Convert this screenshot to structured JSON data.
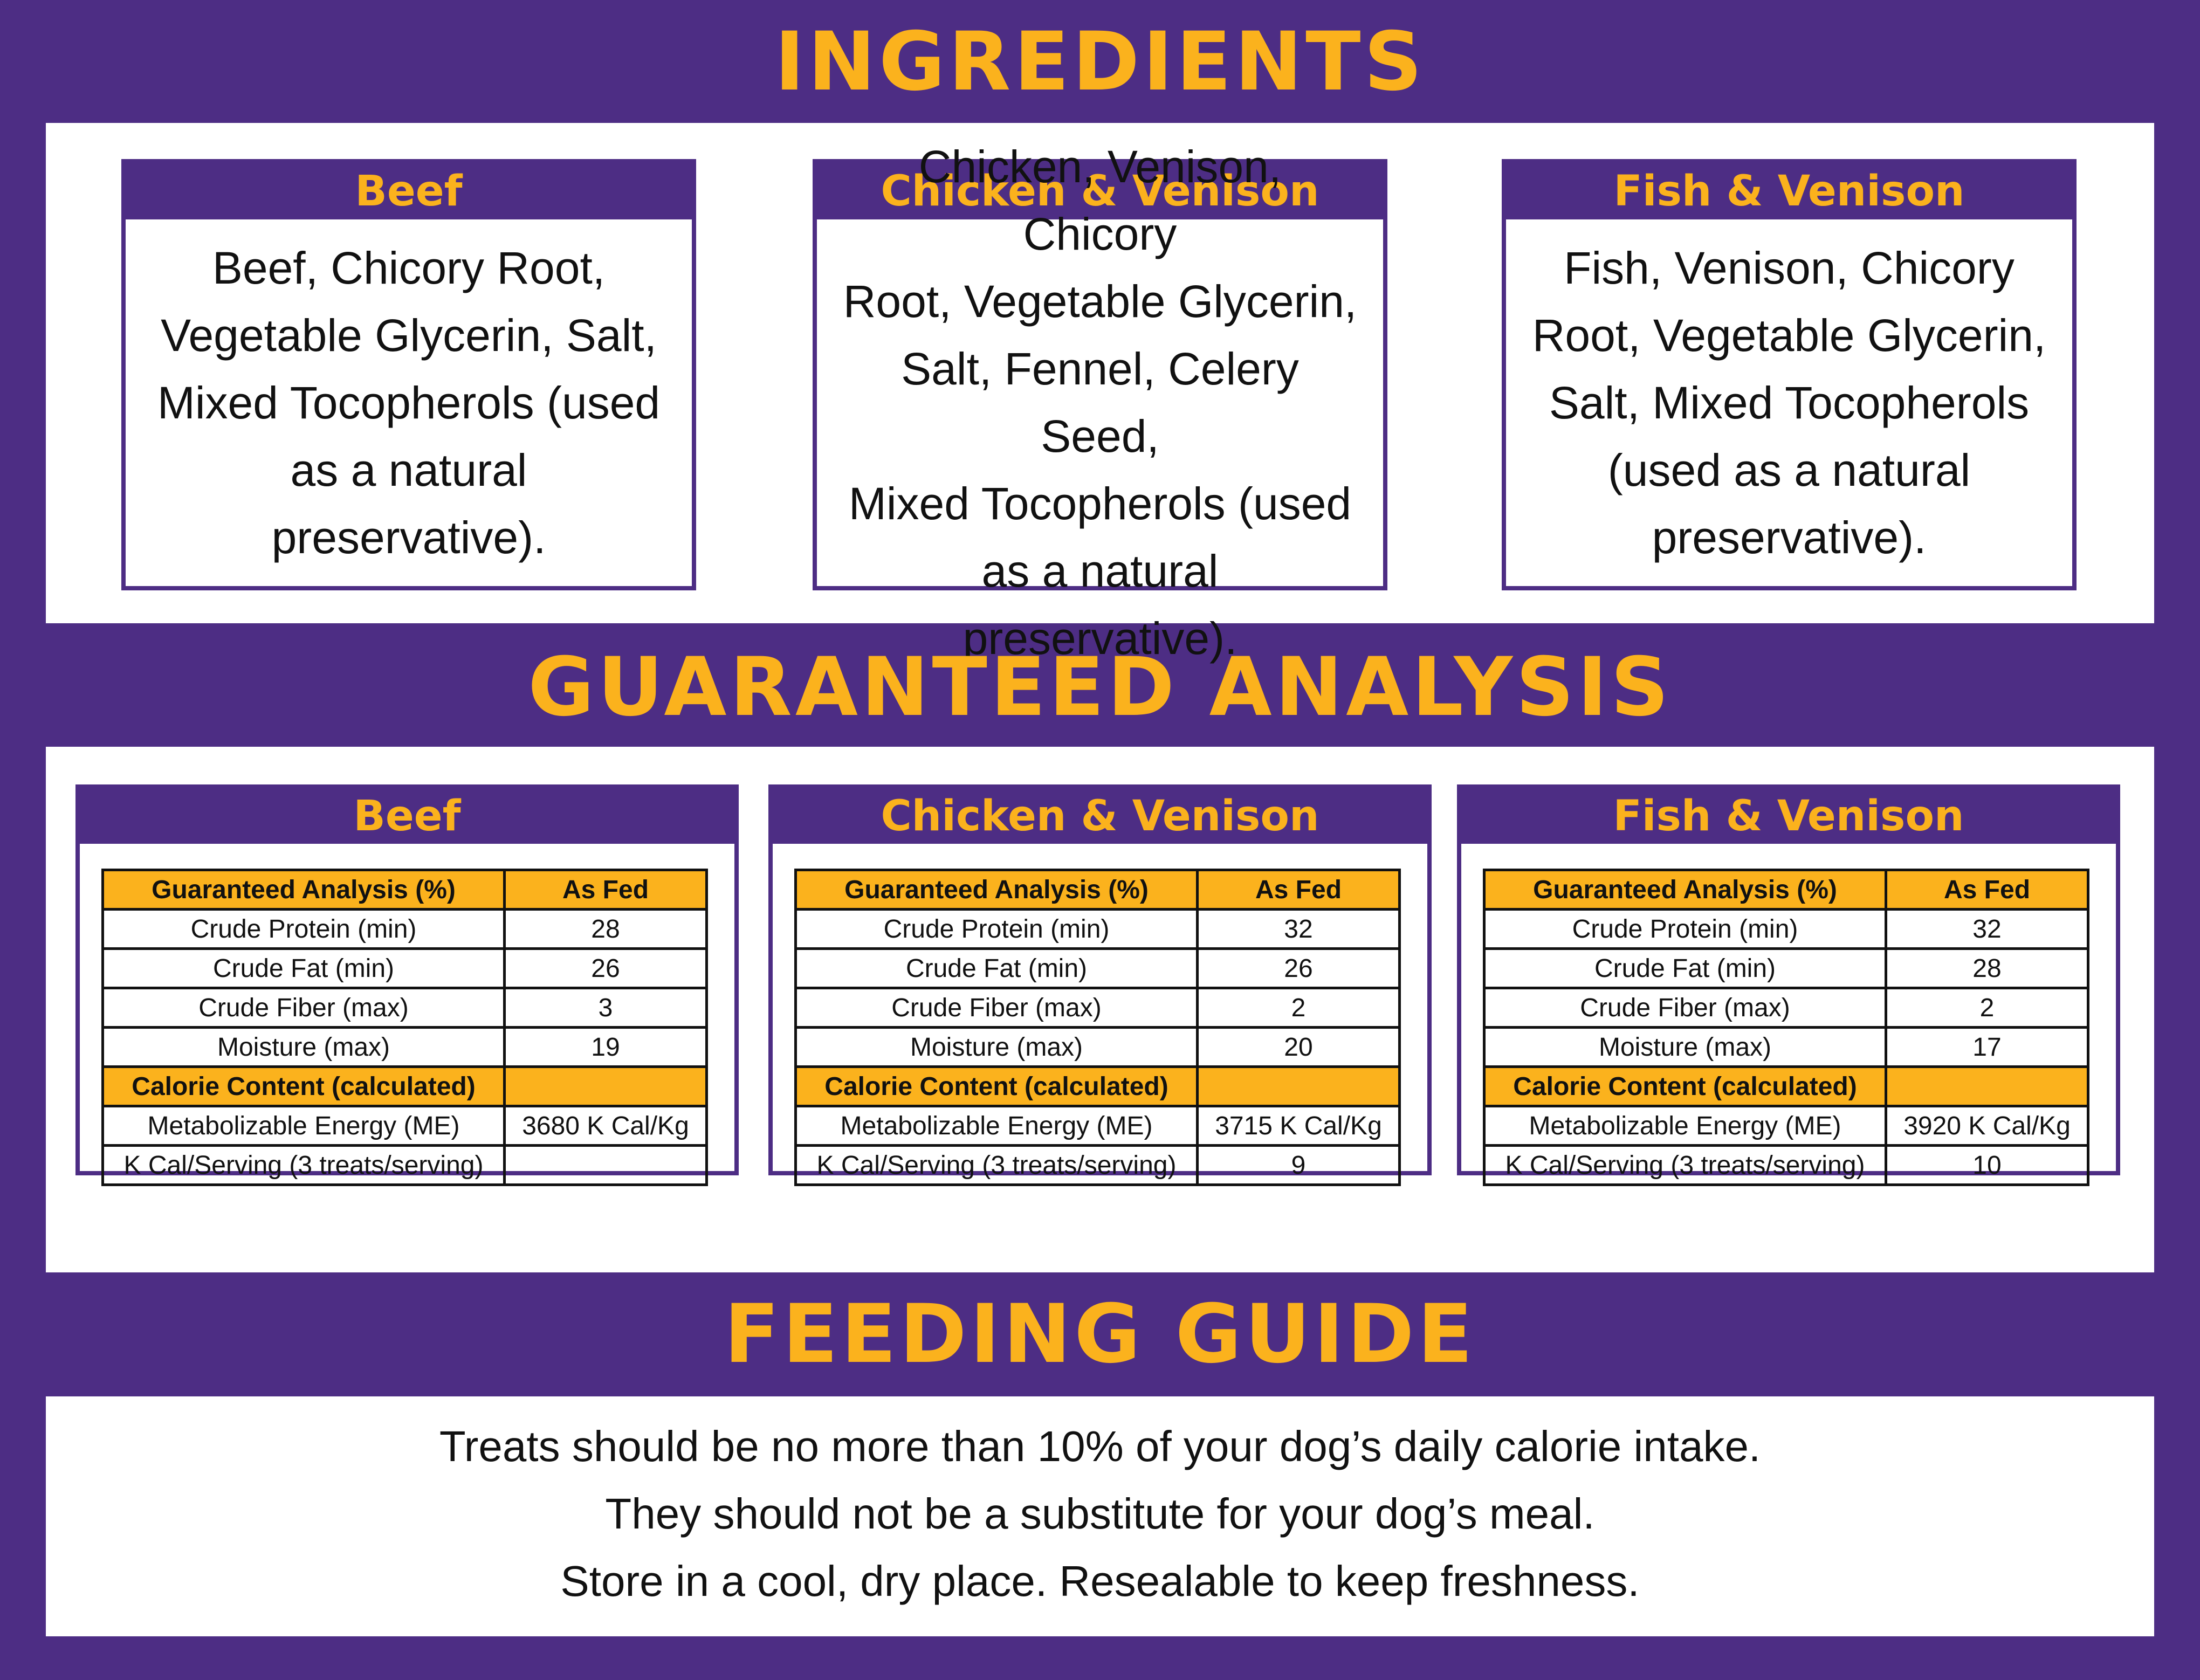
{
  "sections": {
    "ingredients_title": "INGREDIENTS",
    "analysis_title": "GUARANTEED ANALYSIS",
    "feeding_title": "FEEDING GUIDE"
  },
  "ingredients": [
    {
      "name": "Beef",
      "lines": [
        "Beef, Chicory Root,",
        "Vegetable Glycerin, Salt,",
        "Mixed Tocopherols (used",
        "as a natural preservative)."
      ]
    },
    {
      "name": "Chicken & Venison",
      "lines": [
        "Chicken, Venison, Chicory",
        "Root, Vegetable Glycerin,",
        "Salt, Fennel, Celery Seed,",
        "Mixed Tocopherols (used",
        "as a natural preservative)."
      ]
    },
    {
      "name": "Fish & Venison",
      "lines": [
        "Fish, Venison, Chicory",
        "Root, Vegetable Glycerin,",
        "Salt, Mixed Tocopherols",
        "(used as a natural",
        "preservative)."
      ]
    }
  ],
  "analysis": [
    {
      "name": "Beef",
      "rows": [
        [
          "Guaranteed Analysis (%)",
          "As Fed"
        ],
        [
          "Crude Protein (min)",
          "28"
        ],
        [
          "Crude Fat (min)",
          "26"
        ],
        [
          "Crude Fiber (max)",
          "3"
        ],
        [
          "Moisture (max)",
          "19"
        ],
        [
          "Calorie Content (calculated)",
          ""
        ],
        [
          "Metabolizable Energy (ME)",
          "3680 K Cal/Kg"
        ],
        [
          "K Cal/Serving (3 treats/serving)",
          ""
        ]
      ]
    },
    {
      "name": "Chicken & Venison",
      "rows": [
        [
          "Guaranteed Analysis (%)",
          "As Fed"
        ],
        [
          "Crude Protein (min)",
          "32"
        ],
        [
          "Crude Fat (min)",
          "26"
        ],
        [
          "Crude Fiber (max)",
          "2"
        ],
        [
          "Moisture (max)",
          "20"
        ],
        [
          "Calorie Content (calculated)",
          ""
        ],
        [
          "Metabolizable Energy (ME)",
          "3715 K Cal/Kg"
        ],
        [
          "K Cal/Serving (3 treats/serving)",
          "9"
        ]
      ]
    },
    {
      "name": "Fish & Venison",
      "rows": [
        [
          "Guaranteed Analysis (%)",
          "As Fed"
        ],
        [
          "Crude Protein (min)",
          "32"
        ],
        [
          "Crude Fat (min)",
          "28"
        ],
        [
          "Crude Fiber (max)",
          "2"
        ],
        [
          "Moisture (max)",
          "17"
        ],
        [
          "Calorie Content (calculated)",
          ""
        ],
        [
          "Metabolizable Energy (ME)",
          "3920 K Cal/Kg"
        ],
        [
          "K Cal/Serving (3 treats/serving)",
          "10"
        ]
      ]
    }
  ],
  "feeding_guide": [
    "Treats should be no more than 10% of your dog’s daily calorie intake.",
    "They should not be a substitute for your dog’s meal.",
    "Store in a cool, dry place. Resealable to keep freshness."
  ],
  "colors": {
    "purple": "#4d2d84",
    "gold": "#fbb21d",
    "white": "#ffffff",
    "text": "#111111"
  }
}
